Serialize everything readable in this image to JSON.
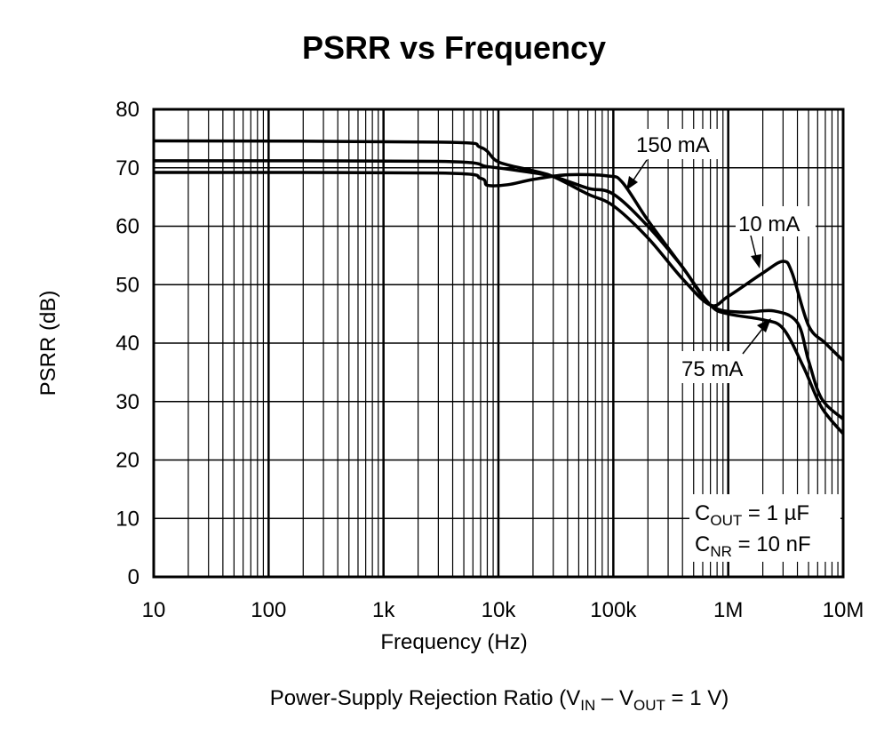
{
  "chart_data": {
    "type": "line",
    "title": "PSRR vs Frequency",
    "xlabel": "Frequency (Hz)",
    "ylabel": "PSRR (dB)",
    "caption": {
      "pre": "Power-Supply Rejection Ratio (V",
      "sub1": "IN",
      "mid": " – V",
      "sub2": "OUT",
      "post": " = 1 V)"
    },
    "x_scale": "log",
    "xlim": [
      10,
      10000000
    ],
    "ylim": [
      0,
      80
    ],
    "grid": true,
    "x_ticks": [
      10,
      100,
      1000,
      10000,
      100000,
      1000000,
      10000000
    ],
    "x_tick_labels": [
      "10",
      "100",
      "1k",
      "10k",
      "100k",
      "1M",
      "10M"
    ],
    "y_ticks": [
      0,
      10,
      20,
      30,
      40,
      50,
      60,
      70,
      80
    ],
    "y_tick_labels": [
      "0",
      "10",
      "20",
      "30",
      "40",
      "50",
      "60",
      "70",
      "80"
    ],
    "conditions": [
      {
        "pre": "C",
        "sub": "OUT",
        "post": " = 1 µF"
      },
      {
        "pre": "C",
        "sub": "NR",
        "post": " = 10 nF"
      }
    ],
    "series": [
      {
        "name": "10 mA",
        "color": "#000000",
        "x": [
          10,
          3000,
          7000,
          10000,
          20000,
          30000,
          60000,
          100000,
          200000,
          400000,
          700000,
          1000000,
          2000000,
          3000000,
          3600000,
          5000000,
          7000000,
          10000000
        ],
        "y": [
          74.6,
          74.4,
          73.5,
          71,
          69.5,
          68.5,
          65.5,
          63.5,
          58,
          51,
          46.5,
          48,
          52,
          54,
          52,
          43,
          40,
          37
        ]
      },
      {
        "name": "75 mA",
        "color": "#000000",
        "x": [
          10,
          3000,
          8000,
          15000,
          30000,
          60000,
          100000,
          200000,
          400000,
          700000,
          1300000,
          2500000,
          4000000,
          5000000,
          6500000,
          10000000
        ],
        "y": [
          71.2,
          71.1,
          70.2,
          69.5,
          68.5,
          66.5,
          65.5,
          60,
          53,
          46.5,
          45.3,
          45.5,
          43.5,
          37,
          30.5,
          27
        ]
      },
      {
        "name": "150 mA",
        "color": "#000000",
        "x": [
          10,
          3000,
          7000,
          8000,
          12000,
          20000,
          40000,
          90000,
          120000,
          200000,
          400000,
          700000,
          1000000,
          2000000,
          3000000,
          4500000,
          6500000,
          10000000
        ],
        "y": [
          69.2,
          69.1,
          68.2,
          67.0,
          67.1,
          68,
          68.8,
          68.6,
          67.5,
          61,
          53,
          46.5,
          45,
          44,
          42.5,
          36,
          29,
          24.5
        ]
      }
    ],
    "annotations": [
      {
        "text": "150 mA",
        "series": "150 mA"
      },
      {
        "text": "10 mA",
        "series": "10 mA"
      },
      {
        "text": "75 mA",
        "series": "75 mA"
      }
    ]
  }
}
